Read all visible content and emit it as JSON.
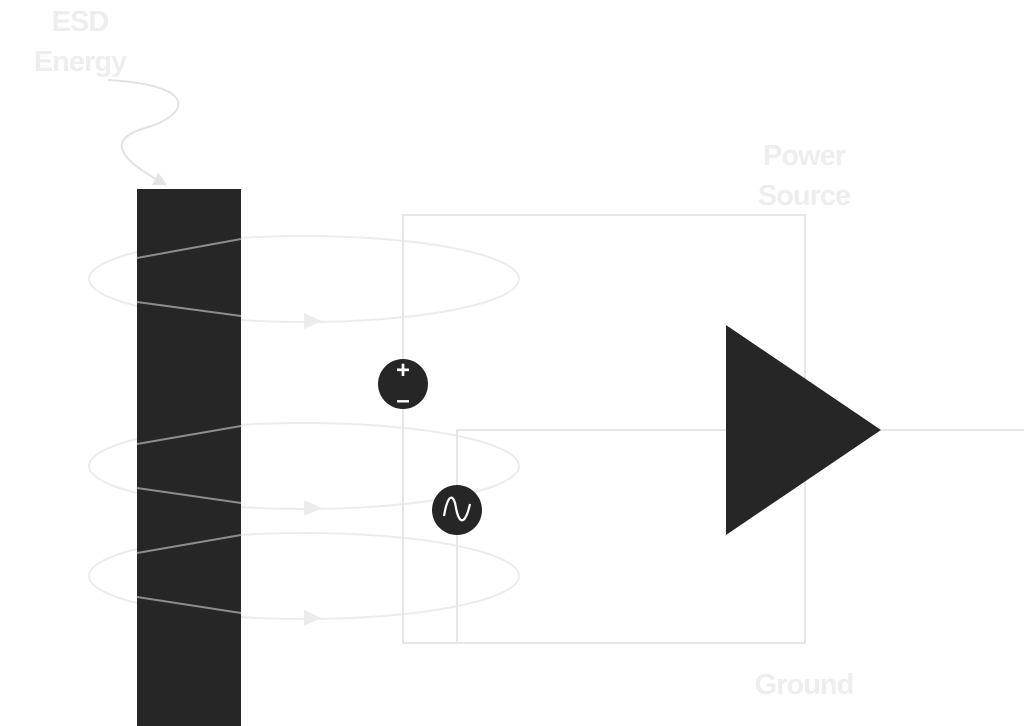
{
  "labels": {
    "esd_line1": "ESD",
    "esd_line2": "Energy",
    "power_line1": "Power",
    "power_line2": "Source",
    "ground": "Ground"
  },
  "symbols": {
    "dc_plus": "+",
    "dc_minus": "–"
  },
  "icons": {
    "dc_source": "dc-source-icon",
    "ac_source": "ac-source-icon",
    "amplifier": "amplifier-triangle-icon",
    "conductor": "esd-conductor-bar",
    "field_loops": "magnetic-field-loop-icon"
  },
  "colors": {
    "background": "#ffffff",
    "dark": "#262626",
    "line": "#e6e6e6",
    "label": "#eeeeee"
  }
}
